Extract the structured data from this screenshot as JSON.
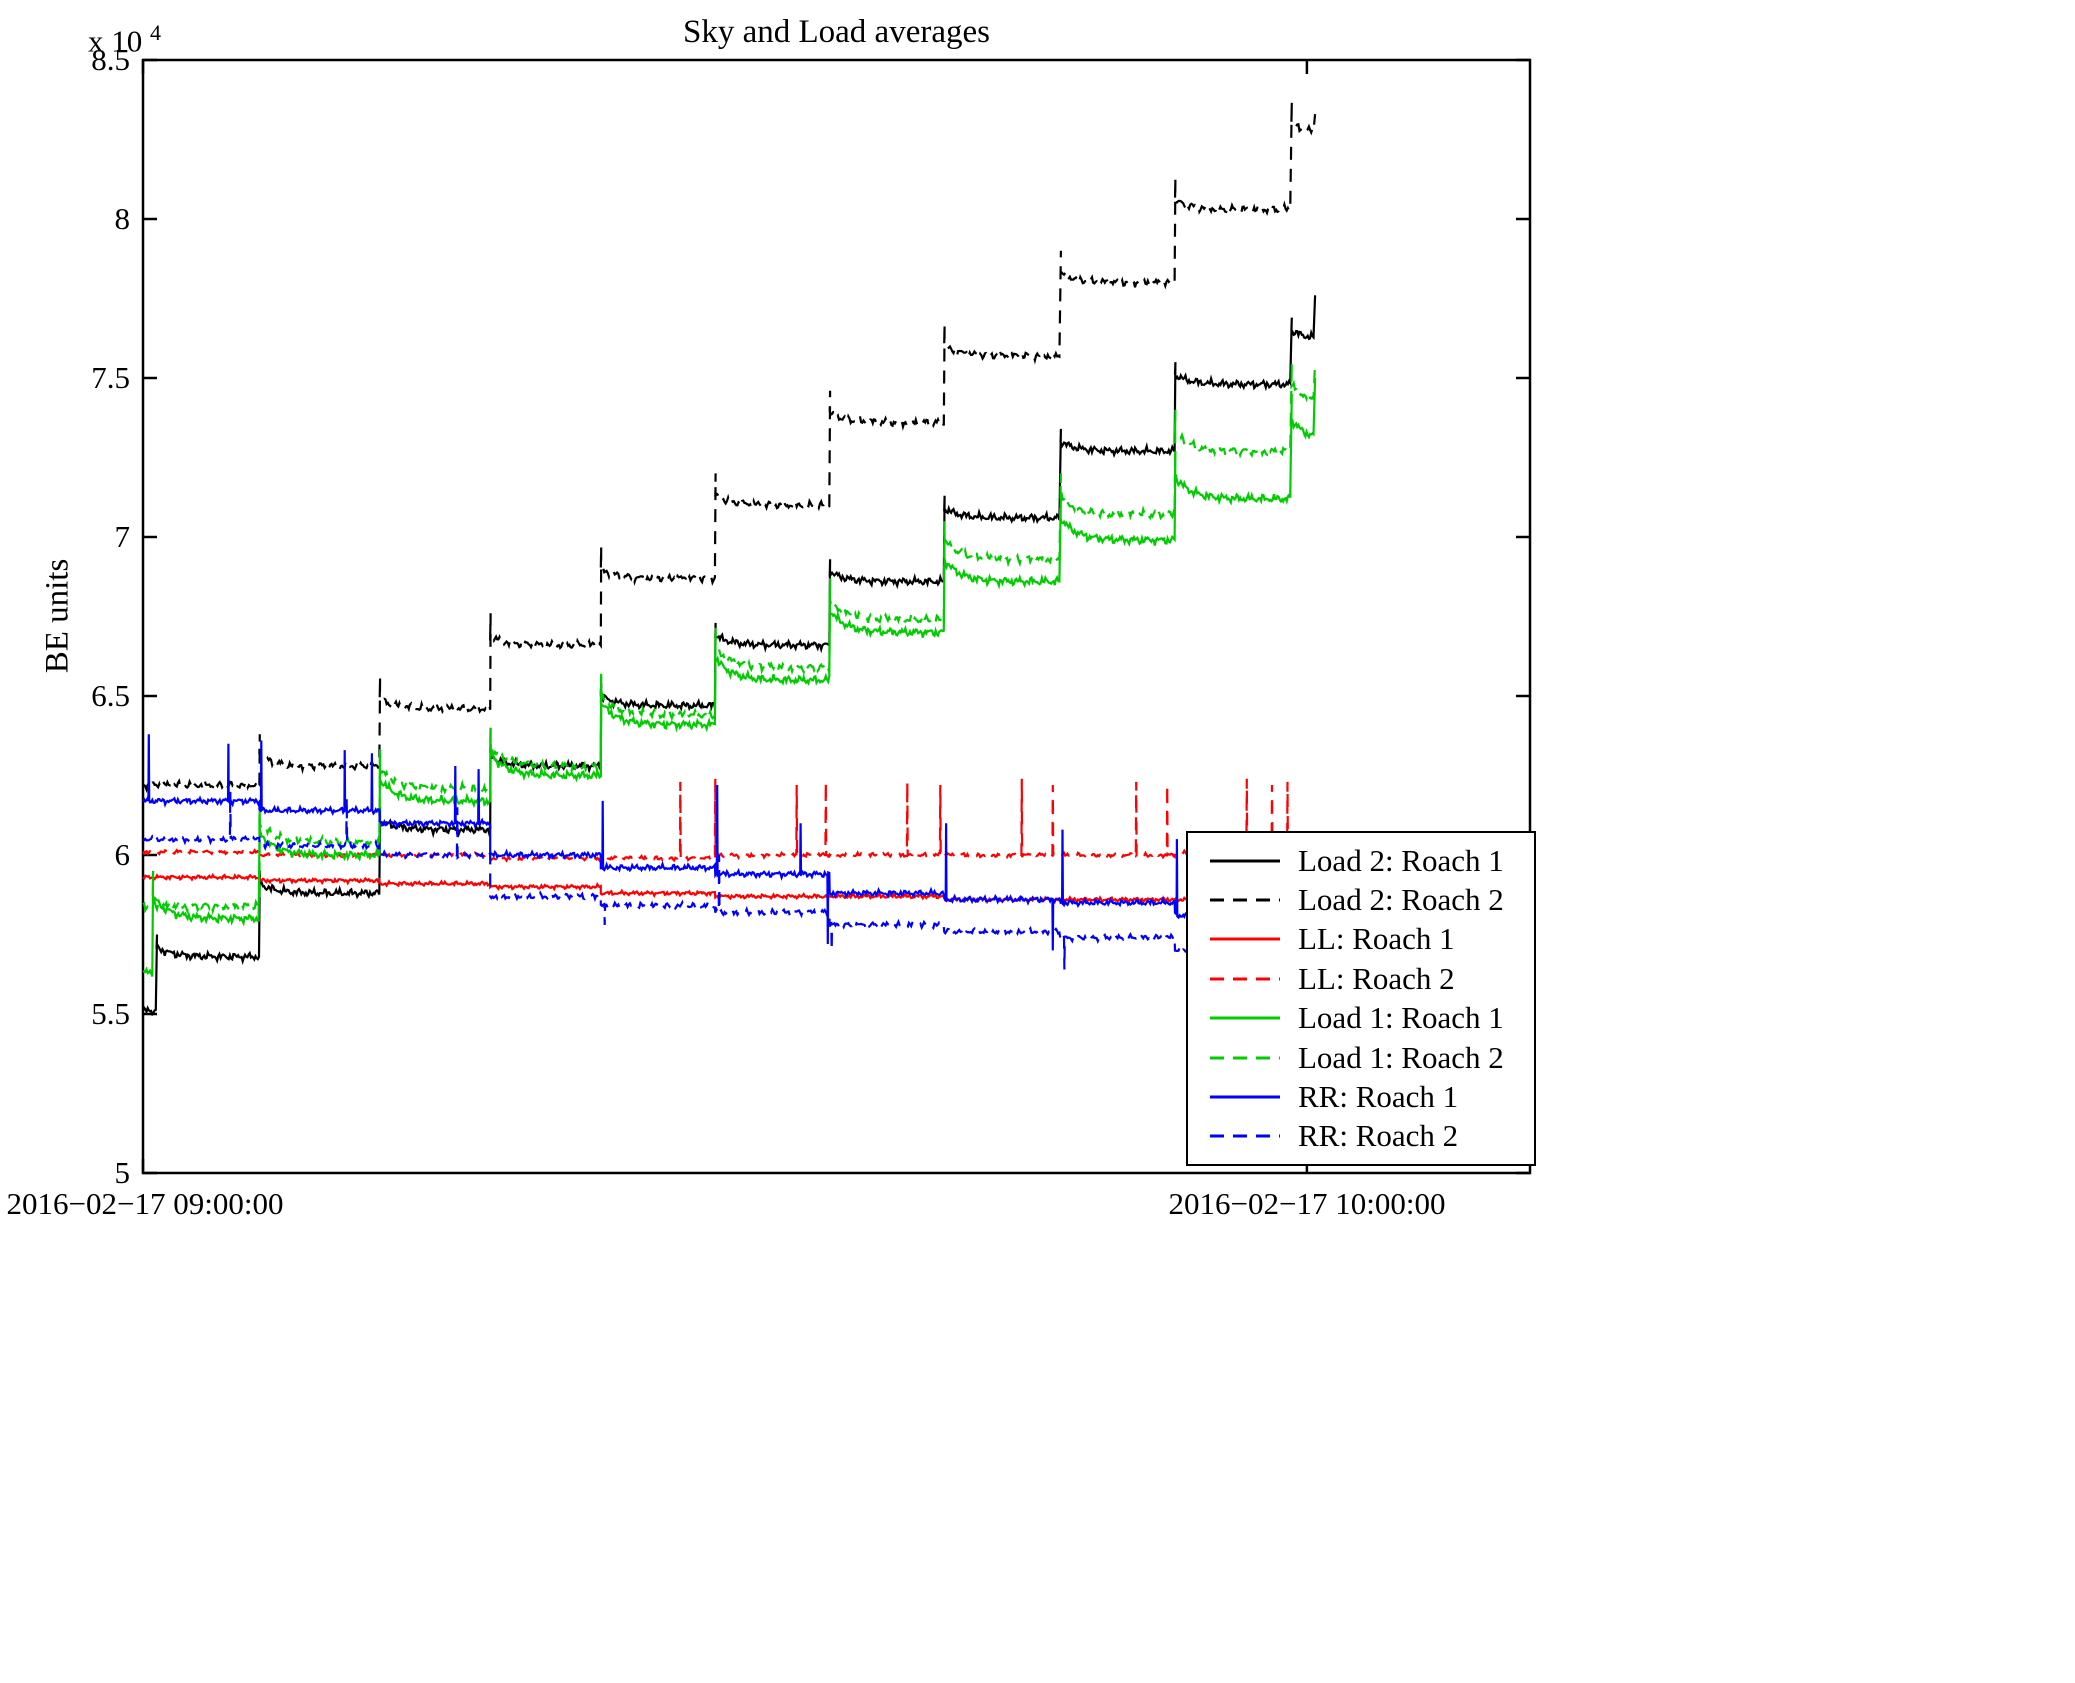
{
  "chart_data": {
    "type": "line",
    "title": "Sky and Load averages",
    "ylabel": "BE units",
    "y_exp_prefix": "x 10",
    "y_exp_power": "4",
    "grid": false,
    "legend_position": "bottom-right",
    "x_range_minutes": [
      0,
      71.5
    ],
    "y_range": [
      5,
      8.5
    ],
    "y_ticks": [
      5,
      5.5,
      6,
      6.5,
      7,
      7.5,
      8,
      8.5
    ],
    "y_tick_labels_desc": [
      "8.5",
      "8",
      "7.5",
      "7",
      "6.5",
      "6",
      "5.5",
      "5"
    ],
    "x_ticks": [
      {
        "minute": 0,
        "label": "2016−02−17 09:00:00"
      },
      {
        "minute": 60,
        "label": "2016−02−17 10:00:00"
      }
    ],
    "units_note": "y values are in units of 1e4 BE units; x is minutes after 09:00:00",
    "series": [
      {
        "name": "Load 2: Roach 1",
        "color": "#000000",
        "dash": false,
        "noise": 0.013,
        "overshoot": 0.07,
        "settle": 0.03,
        "segments": [
          [
            0,
            0.7,
            5.51
          ],
          [
            0.7,
            6.0,
            5.68
          ],
          [
            6.0,
            12.2,
            5.88
          ],
          [
            12.2,
            17.9,
            6.08
          ],
          [
            17.9,
            23.6,
            6.28
          ],
          [
            23.6,
            29.5,
            6.47
          ],
          [
            29.5,
            35.4,
            6.66
          ],
          [
            35.4,
            41.3,
            6.86
          ],
          [
            41.3,
            47.3,
            7.06
          ],
          [
            47.3,
            53.2,
            7.27
          ],
          [
            53.2,
            59.2,
            7.48
          ],
          [
            59.2,
            60.4,
            7.62
          ]
        ],
        "end_spike": 7.76
      },
      {
        "name": "Load 2: Roach 2",
        "color": "#000000",
        "dash": true,
        "noise": 0.013,
        "overshoot": 0.1,
        "settle": 0.03,
        "segments": [
          [
            0,
            6.0,
            6.22
          ],
          [
            6.0,
            12.2,
            6.28
          ],
          [
            12.2,
            17.9,
            6.46
          ],
          [
            17.9,
            23.6,
            6.66
          ],
          [
            23.6,
            29.5,
            6.87
          ],
          [
            29.5,
            35.4,
            7.1
          ],
          [
            35.4,
            41.3,
            7.36
          ],
          [
            41.3,
            47.3,
            7.57
          ],
          [
            47.3,
            53.2,
            7.8
          ],
          [
            53.2,
            59.2,
            8.03
          ],
          [
            59.2,
            60.4,
            8.27
          ]
        ],
        "end_spike": 8.33
      },
      {
        "name": "LL: Roach 1",
        "color": "#ff0000",
        "dash": false,
        "noise": 0.007,
        "overshoot": 0,
        "settle": 0,
        "segments": [
          [
            0,
            6.0,
            5.93
          ],
          [
            6.0,
            12.2,
            5.92
          ],
          [
            12.2,
            17.9,
            5.91
          ],
          [
            17.9,
            23.6,
            5.9
          ],
          [
            23.6,
            29.5,
            5.88
          ],
          [
            29.5,
            35.4,
            5.87
          ],
          [
            35.4,
            41.3,
            5.87
          ],
          [
            41.3,
            47.3,
            5.86
          ],
          [
            47.3,
            53.2,
            5.86
          ],
          [
            53.2,
            60.4,
            5.86
          ]
        ]
      },
      {
        "name": "LL: Roach 2",
        "color": "#ff0000",
        "dash": true,
        "noise": 0.007,
        "overshoot": 0,
        "settle": 0,
        "segments": [
          [
            0,
            6.0,
            6.01
          ],
          [
            6.0,
            12.2,
            6.0
          ],
          [
            12.2,
            17.9,
            6.0
          ],
          [
            17.9,
            23.6,
            5.99
          ],
          [
            23.6,
            29.5,
            5.99
          ],
          [
            29.5,
            35.4,
            6.0
          ],
          [
            35.4,
            41.3,
            6.0
          ],
          [
            41.3,
            47.3,
            6.0
          ],
          [
            47.3,
            53.2,
            6.0
          ],
          [
            53.2,
            60.4,
            6.01
          ]
        ],
        "spikes_up": [
          [
            27.7,
            6.23
          ],
          [
            29.5,
            6.24
          ],
          [
            33.7,
            6.22
          ],
          [
            35.2,
            6.23
          ],
          [
            39.4,
            6.23
          ],
          [
            41.1,
            6.22
          ],
          [
            45.3,
            6.24
          ],
          [
            46.9,
            6.22
          ],
          [
            51.2,
            6.23
          ],
          [
            52.8,
            6.22
          ],
          [
            56.9,
            6.24
          ],
          [
            58.2,
            6.22
          ],
          [
            59.0,
            6.23
          ]
        ]
      },
      {
        "name": "Load 1: Roach 1",
        "color": "#00cc00",
        "dash": false,
        "noise": 0.014,
        "overshoot": 0.15,
        "settle": 0.07,
        "segments": [
          [
            0,
            0.5,
            5.63
          ],
          [
            0.5,
            6.0,
            5.8
          ],
          [
            6.0,
            12.2,
            6.0
          ],
          [
            12.2,
            17.9,
            6.17
          ],
          [
            17.9,
            23.6,
            6.25
          ],
          [
            23.6,
            29.5,
            6.41
          ],
          [
            29.5,
            35.4,
            6.55
          ],
          [
            35.4,
            41.3,
            6.7
          ],
          [
            41.3,
            47.3,
            6.86
          ],
          [
            47.3,
            53.2,
            6.99
          ],
          [
            53.2,
            59.2,
            7.12
          ],
          [
            59.2,
            60.4,
            7.3
          ]
        ],
        "end_spike": 7.5
      },
      {
        "name": "Load 1: Roach 2",
        "color": "#00cc00",
        "dash": true,
        "noise": 0.014,
        "overshoot": 0.13,
        "settle": 0.06,
        "segments": [
          [
            0,
            6.0,
            5.84
          ],
          [
            6.0,
            12.2,
            6.04
          ],
          [
            12.2,
            17.9,
            6.21
          ],
          [
            17.9,
            23.6,
            6.28
          ],
          [
            23.6,
            29.5,
            6.44
          ],
          [
            29.5,
            35.4,
            6.59
          ],
          [
            35.4,
            41.3,
            6.74
          ],
          [
            41.3,
            47.3,
            6.93
          ],
          [
            47.3,
            53.2,
            7.07
          ],
          [
            53.2,
            59.2,
            7.27
          ],
          [
            59.2,
            60.4,
            7.42
          ]
        ],
        "end_spike": 7.55
      },
      {
        "name": "RR: Roach 1",
        "color": "#0000ff",
        "dash": false,
        "noise": 0.01,
        "overshoot": 0,
        "settle": 0,
        "segments": [
          [
            0,
            6.0,
            6.17
          ],
          [
            6.0,
            12.2,
            6.14
          ],
          [
            12.2,
            17.9,
            6.1
          ],
          [
            17.9,
            23.6,
            6.0
          ],
          [
            23.6,
            29.5,
            5.96
          ],
          [
            29.5,
            35.4,
            5.94
          ],
          [
            35.4,
            41.3,
            5.88
          ],
          [
            41.3,
            47.3,
            5.86
          ],
          [
            47.3,
            53.2,
            5.85
          ],
          [
            53.2,
            60.4,
            5.81
          ]
        ],
        "spikes_up": [
          [
            0.3,
            6.38
          ],
          [
            4.4,
            6.35
          ],
          [
            6.1,
            6.36
          ],
          [
            10.4,
            6.33
          ],
          [
            11.8,
            6.32
          ],
          [
            16.1,
            6.28
          ],
          [
            17.3,
            6.27
          ],
          [
            23.7,
            6.17
          ],
          [
            29.6,
            6.22
          ],
          [
            33.9,
            6.1
          ],
          [
            41.4,
            6.1
          ],
          [
            47.4,
            6.08
          ],
          [
            53.3,
            6.05
          ],
          [
            59.3,
            6.0
          ]
        ],
        "spikes_down": [
          [
            35.3,
            5.72
          ],
          [
            46.9,
            5.7
          ],
          [
            57.0,
            5.66
          ]
        ]
      },
      {
        "name": "RR: Roach 2",
        "color": "#0000ff",
        "dash": true,
        "noise": 0.01,
        "overshoot": 0,
        "settle": 0,
        "segments": [
          [
            0,
            6.0,
            6.05
          ],
          [
            6.0,
            12.2,
            6.03
          ],
          [
            12.2,
            17.9,
            6.0
          ],
          [
            17.9,
            23.6,
            5.87
          ],
          [
            23.6,
            29.5,
            5.84
          ],
          [
            29.5,
            35.4,
            5.82
          ],
          [
            35.4,
            41.3,
            5.78
          ],
          [
            41.3,
            47.3,
            5.76
          ],
          [
            47.3,
            53.2,
            5.74
          ],
          [
            53.2,
            60.4,
            5.7
          ]
        ],
        "spikes_up": [
          [
            4.5,
            6.2
          ],
          [
            10.5,
            6.18
          ],
          [
            16.2,
            6.15
          ],
          [
            29.7,
            6.0
          ]
        ],
        "spikes_down": [
          [
            23.8,
            5.78
          ],
          [
            35.5,
            5.7
          ],
          [
            47.5,
            5.64
          ],
          [
            57.1,
            5.6
          ]
        ]
      }
    ]
  }
}
